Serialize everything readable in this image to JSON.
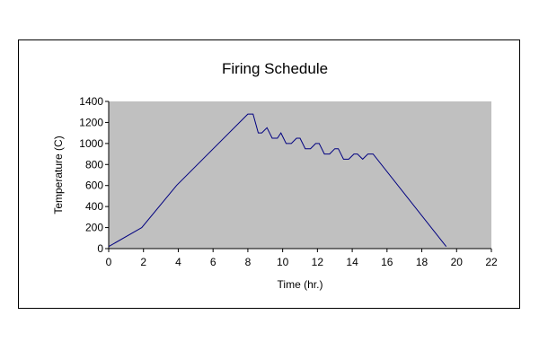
{
  "chart_data": {
    "type": "line",
    "title": "Firing Schedule",
    "xlabel": "Time (hr.)",
    "ylabel": "Temperature (C)",
    "xlim": [
      0,
      22
    ],
    "ylim": [
      0,
      1400
    ],
    "xticks": [
      0,
      2,
      4,
      6,
      8,
      10,
      12,
      14,
      16,
      18,
      20,
      22
    ],
    "yticks": [
      0,
      200,
      400,
      600,
      800,
      1000,
      1200,
      1400
    ],
    "grid": false,
    "legend": "none",
    "plot_background": "#c0c0c0",
    "series": [
      {
        "color": "#000080",
        "x": [
          0,
          1.9,
          3.9,
          8.0,
          8.3,
          8.6,
          8.8,
          9.1,
          9.4,
          9.7,
          9.9,
          10.2,
          10.5,
          10.8,
          11.0,
          11.3,
          11.6,
          11.9,
          12.1,
          12.4,
          12.7,
          13.0,
          13.2,
          13.5,
          13.8,
          14.1,
          14.3,
          14.6,
          14.9,
          15.2,
          19.4
        ],
        "y": [
          20,
          200,
          600,
          1280,
          1280,
          1100,
          1100,
          1150,
          1050,
          1050,
          1100,
          1000,
          1000,
          1050,
          1050,
          950,
          950,
          1000,
          1000,
          900,
          900,
          950,
          950,
          850,
          850,
          900,
          900,
          850,
          900,
          900,
          20
        ]
      }
    ]
  }
}
